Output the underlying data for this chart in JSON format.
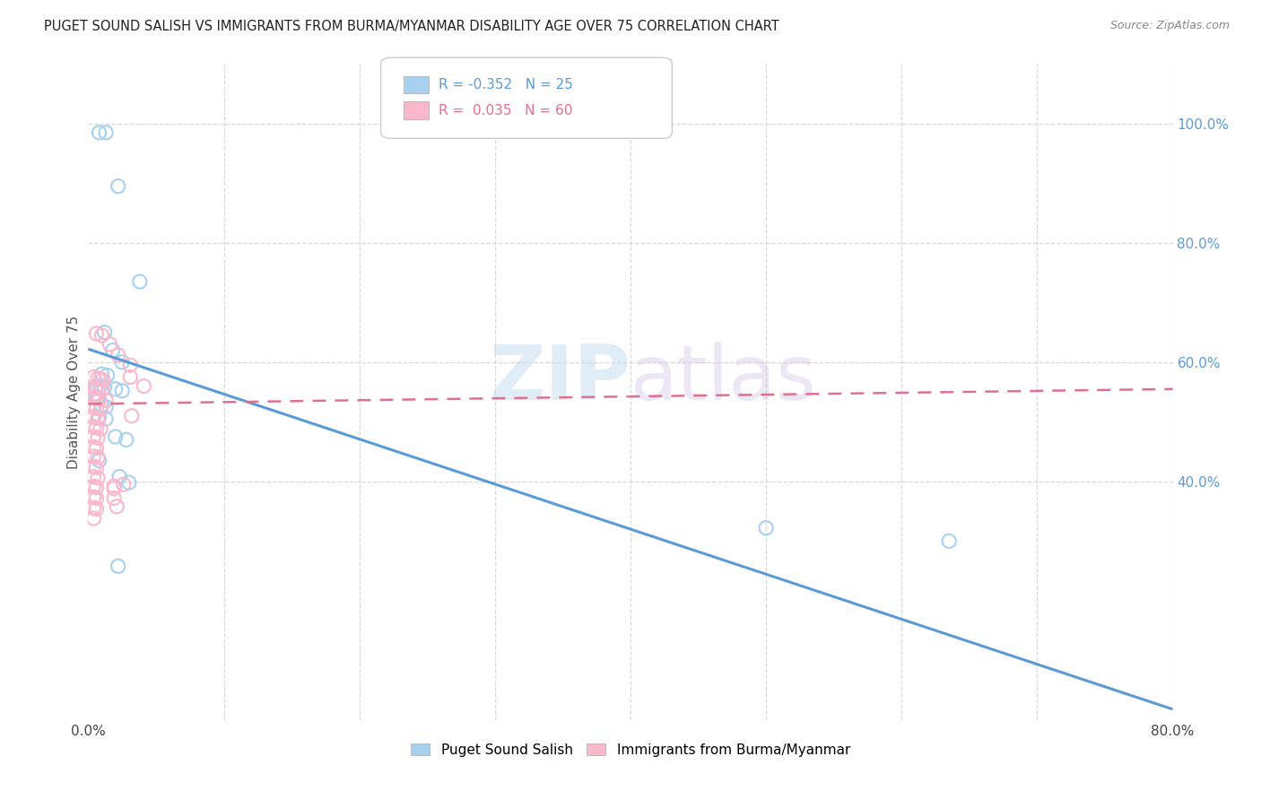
{
  "title": "PUGET SOUND SALISH VS IMMIGRANTS FROM BURMA/MYANMAR DISABILITY AGE OVER 75 CORRELATION CHART",
  "source": "Source: ZipAtlas.com",
  "ylabel": "Disability Age Over 75",
  "xlim": [
    0.0,
    0.8
  ],
  "ylim": [
    0.0,
    1.1
  ],
  "color_blue": "#a8d1f0",
  "color_pink": "#f9b8cb",
  "color_blue_line": "#5b9bd5",
  "color_pink_line": "#e07090",
  "watermark": "ZIPatlas",
  "blue_scatter": [
    [
      0.008,
      0.985
    ],
    [
      0.013,
      0.985
    ],
    [
      0.022,
      0.895
    ],
    [
      0.038,
      0.735
    ],
    [
      0.012,
      0.65
    ],
    [
      0.018,
      0.62
    ],
    [
      0.025,
      0.6
    ],
    [
      0.01,
      0.58
    ],
    [
      0.014,
      0.578
    ],
    [
      0.006,
      0.56
    ],
    [
      0.009,
      0.56
    ],
    [
      0.012,
      0.558
    ],
    [
      0.02,
      0.555
    ],
    [
      0.025,
      0.552
    ],
    [
      0.005,
      0.542
    ],
    [
      0.007,
      0.54
    ],
    [
      0.01,
      0.528
    ],
    [
      0.013,
      0.525
    ],
    [
      0.008,
      0.508
    ],
    [
      0.013,
      0.505
    ],
    [
      0.02,
      0.475
    ],
    [
      0.028,
      0.47
    ],
    [
      0.008,
      0.435
    ],
    [
      0.023,
      0.408
    ],
    [
      0.03,
      0.398
    ],
    [
      0.5,
      0.322
    ],
    [
      0.635,
      0.3
    ],
    [
      0.022,
      0.258
    ]
  ],
  "pink_scatter": [
    [
      0.006,
      0.648
    ],
    [
      0.01,
      0.645
    ],
    [
      0.016,
      0.63
    ],
    [
      0.022,
      0.612
    ],
    [
      0.031,
      0.595
    ],
    [
      0.004,
      0.575
    ],
    [
      0.007,
      0.573
    ],
    [
      0.009,
      0.572
    ],
    [
      0.011,
      0.57
    ],
    [
      0.005,
      0.558
    ],
    [
      0.007,
      0.556
    ],
    [
      0.01,
      0.554
    ],
    [
      0.004,
      0.542
    ],
    [
      0.006,
      0.54
    ],
    [
      0.008,
      0.538
    ],
    [
      0.013,
      0.536
    ],
    [
      0.004,
      0.525
    ],
    [
      0.006,
      0.523
    ],
    [
      0.009,
      0.521
    ],
    [
      0.004,
      0.508
    ],
    [
      0.007,
      0.506
    ],
    [
      0.004,
      0.492
    ],
    [
      0.006,
      0.49
    ],
    [
      0.009,
      0.488
    ],
    [
      0.004,
      0.475
    ],
    [
      0.007,
      0.473
    ],
    [
      0.004,
      0.458
    ],
    [
      0.006,
      0.456
    ],
    [
      0.004,
      0.442
    ],
    [
      0.007,
      0.44
    ],
    [
      0.004,
      0.425
    ],
    [
      0.006,
      0.423
    ],
    [
      0.004,
      0.408
    ],
    [
      0.007,
      0.406
    ],
    [
      0.004,
      0.392
    ],
    [
      0.006,
      0.39
    ],
    [
      0.019,
      0.388
    ],
    [
      0.004,
      0.374
    ],
    [
      0.006,
      0.372
    ],
    [
      0.004,
      0.356
    ],
    [
      0.006,
      0.354
    ],
    [
      0.004,
      0.338
    ],
    [
      0.019,
      0.392
    ],
    [
      0.031,
      0.575
    ],
    [
      0.041,
      0.56
    ],
    [
      0.032,
      0.51
    ],
    [
      0.026,
      0.395
    ],
    [
      0.019,
      0.372
    ],
    [
      0.021,
      0.358
    ]
  ],
  "blue_line": [
    [
      0.0,
      0.622
    ],
    [
      0.8,
      0.018
    ]
  ],
  "pink_line": [
    [
      0.0,
      0.53
    ],
    [
      0.8,
      0.555
    ]
  ],
  "grid_color": "#d8d8d8",
  "right_yticks": [
    1.0,
    0.8,
    0.6,
    0.4
  ],
  "right_ytick_labels": [
    "100.0%",
    "80.0%",
    "60.0%",
    "40.0%"
  ]
}
